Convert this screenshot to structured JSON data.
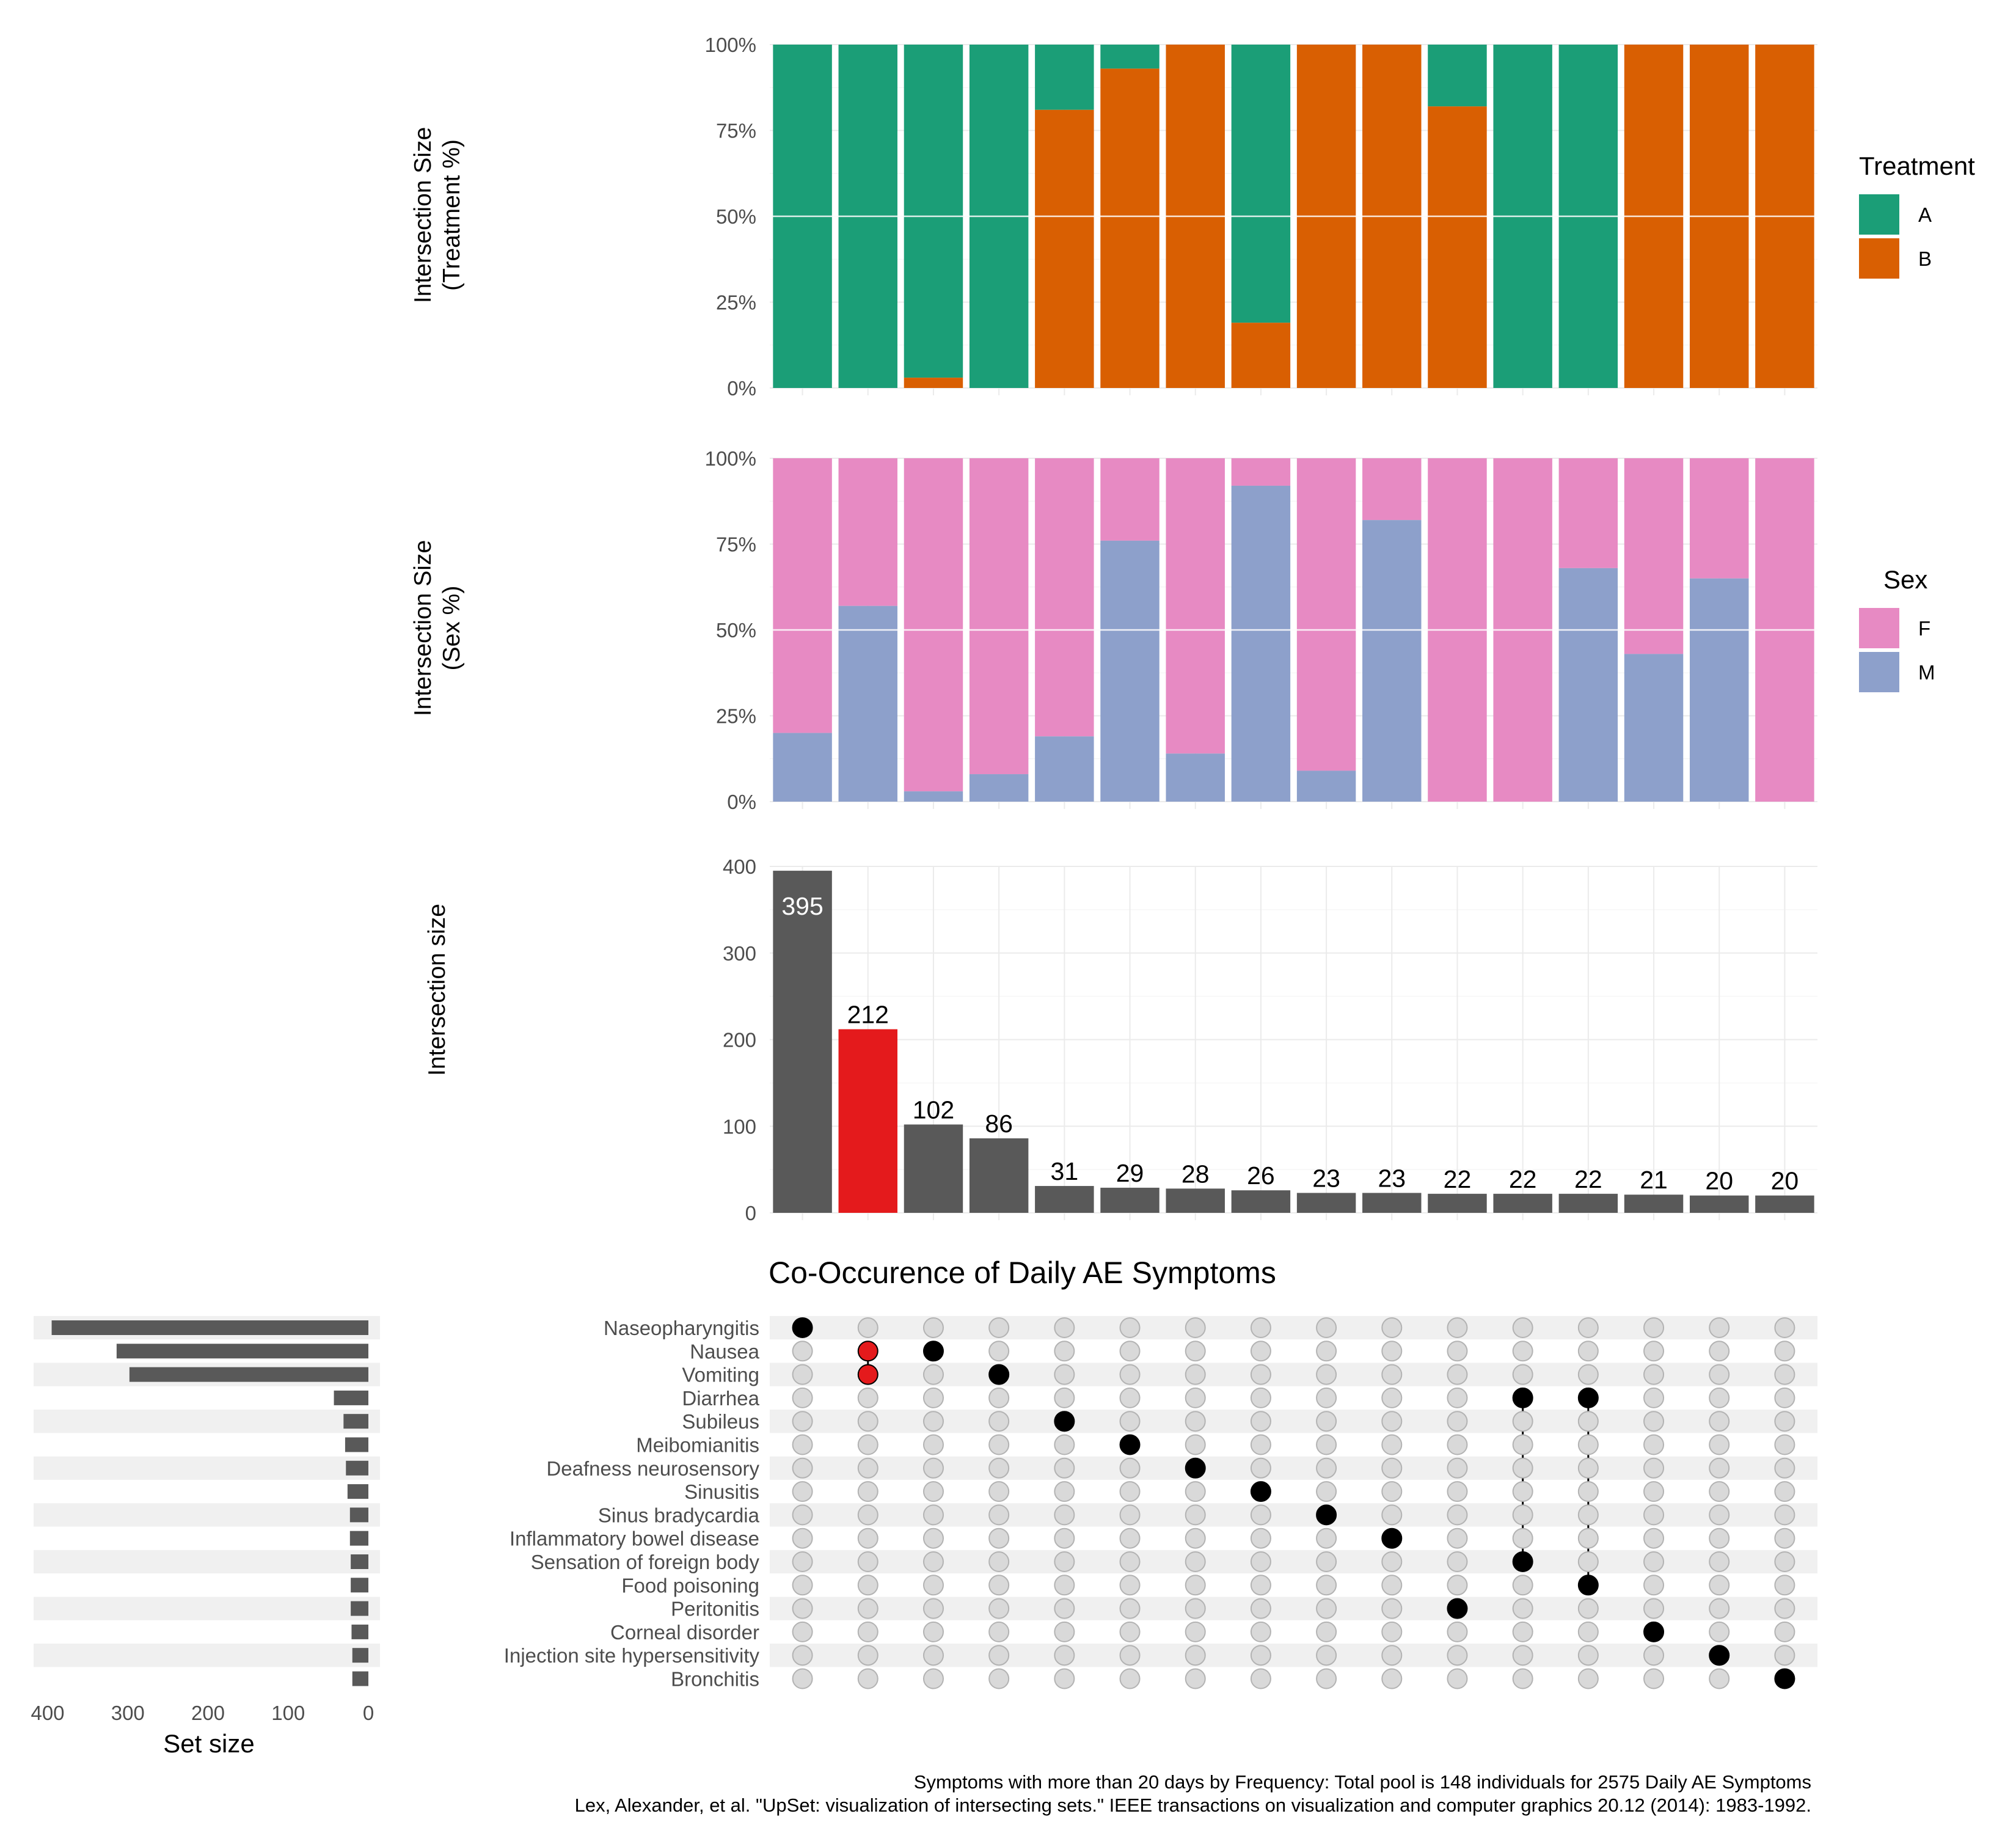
{
  "chart_data": {
    "type": "upset",
    "title": "Co-Occurence of Daily AE Symptoms",
    "caption_line1": "Symptoms with more than 20 days by Frequency: Total pool is 148 individuals for 2575 Daily AE Symptoms",
    "caption_line2": "Lex, Alexander, et al. \"UpSet: visualization of intersecting sets.\" IEEE transactions on visualization and computer graphics 20.12 (2014): 1983-1992.",
    "intersection_sizes": [
      395,
      212,
      102,
      86,
      31,
      29,
      28,
      26,
      23,
      23,
      22,
      22,
      22,
      21,
      20,
      20
    ],
    "highlight_index": 1,
    "highlight_color": "#e41a1c",
    "bar_color": "#595959",
    "sets": [
      "Naseopharyngitis",
      "Nausea",
      "Vomiting",
      "Diarrhea",
      "Subileus",
      "Meibomianitis",
      "Deafness neurosensory",
      "Sinusitis",
      "Sinus bradycardia",
      "Inflammatory bowel disease",
      "Sensation of foreign body",
      "Food poisoning",
      "Peritonitis",
      "Corneal disorder",
      "Injection site hypersensitivity",
      "Bronchitis"
    ],
    "set_sizes": [
      395,
      314,
      298,
      43,
      31,
      29,
      28,
      26,
      23,
      23,
      22,
      22,
      22,
      21,
      20,
      20
    ],
    "set_size_ticks": [
      400,
      300,
      200,
      100,
      0
    ],
    "set_size_label": "Set size",
    "memberships": [
      [
        0
      ],
      [
        1,
        2
      ],
      [
        1
      ],
      [
        2
      ],
      [
        4
      ],
      [
        5
      ],
      [
        6
      ],
      [
        7
      ],
      [
        8
      ],
      [
        9
      ],
      [
        12
      ],
      [
        3,
        10
      ],
      [
        3,
        11
      ],
      [
        13
      ],
      [
        14
      ],
      [
        15
      ]
    ],
    "size_axis": {
      "label": "Intersection size",
      "ticks": [
        0,
        100,
        200,
        300,
        400
      ],
      "ylim": [
        0,
        400
      ]
    },
    "treatment": {
      "axis_label_line1": "Intersection Size",
      "axis_label_line2": "(Treatment %)",
      "legend_title": "Treatment",
      "categories": [
        "A",
        "B"
      ],
      "colors": [
        "#1b9e77",
        "#d95f02"
      ],
      "pct_B": [
        0,
        0,
        3,
        0,
        81,
        93,
        100,
        19,
        100,
        100,
        82,
        0,
        0,
        100,
        100,
        100
      ]
    },
    "sex": {
      "axis_label_line1": "Intersection Size",
      "axis_label_line2": "(Sex %)",
      "legend_title": "Sex",
      "categories": [
        "F",
        "M"
      ],
      "colors": [
        "#e78ac3",
        "#8da0cb"
      ],
      "pct_M": [
        20,
        57,
        3,
        8,
        19,
        76,
        14,
        92,
        9,
        82,
        0,
        0,
        68,
        43,
        65,
        0
      ]
    },
    "pct_ticks": [
      "0%",
      "25%",
      "50%",
      "75%",
      "100%"
    ]
  }
}
